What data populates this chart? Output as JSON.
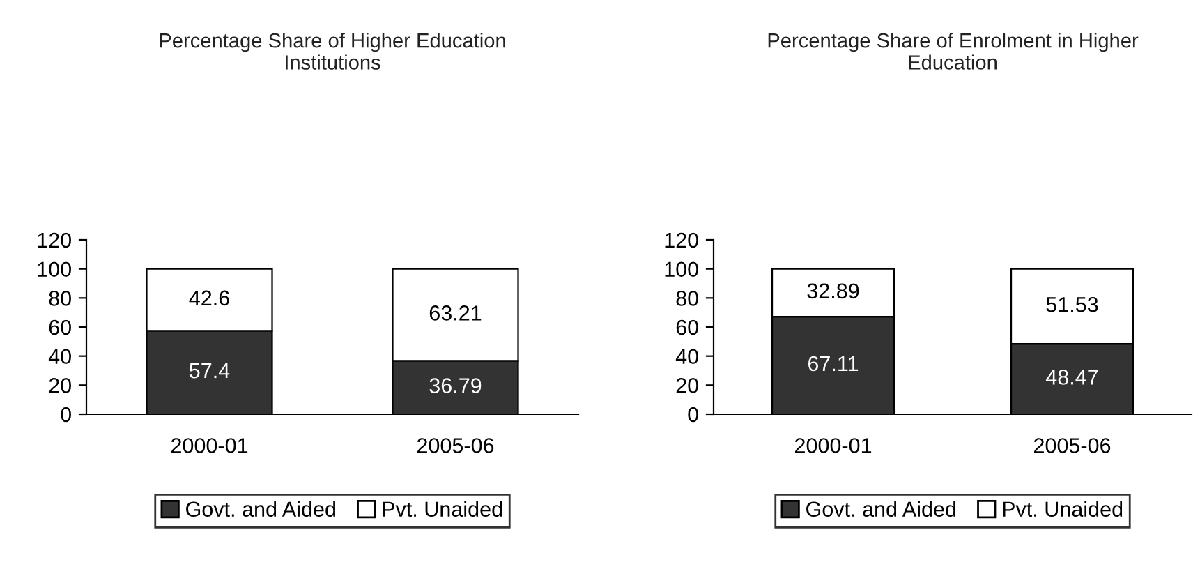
{
  "chart_data": [
    {
      "type": "bar",
      "title": "Percentage Share of Higher Education Institutions",
      "categories": [
        "2000-01",
        "2005-06"
      ],
      "stacked": true,
      "series": [
        {
          "name": "Govt. and Aided",
          "color": "#333333",
          "values": [
            57.4,
            36.79
          ]
        },
        {
          "name": "Pvt. Unaided",
          "color": "#ffffff",
          "values": [
            42.6,
            63.21
          ]
        }
      ],
      "ylim": [
        0,
        120
      ],
      "yticks": [
        0,
        20,
        40,
        60,
        80,
        100,
        120
      ],
      "data_labels": true,
      "legend": "bottom",
      "grid": false
    },
    {
      "type": "bar",
      "title": "Percentage Share of Enrolment in Higher Education",
      "categories": [
        "2000-01",
        "2005-06"
      ],
      "stacked": true,
      "series": [
        {
          "name": "Govt. and Aided",
          "color": "#333333",
          "values": [
            67.11,
            48.47
          ]
        },
        {
          "name": "Pvt. Unaided",
          "color": "#ffffff",
          "values": [
            32.89,
            51.53
          ]
        }
      ],
      "ylim": [
        0,
        120
      ],
      "yticks": [
        0,
        20,
        40,
        60,
        80,
        100,
        120
      ],
      "data_labels": true,
      "legend": "bottom",
      "grid": false
    }
  ]
}
